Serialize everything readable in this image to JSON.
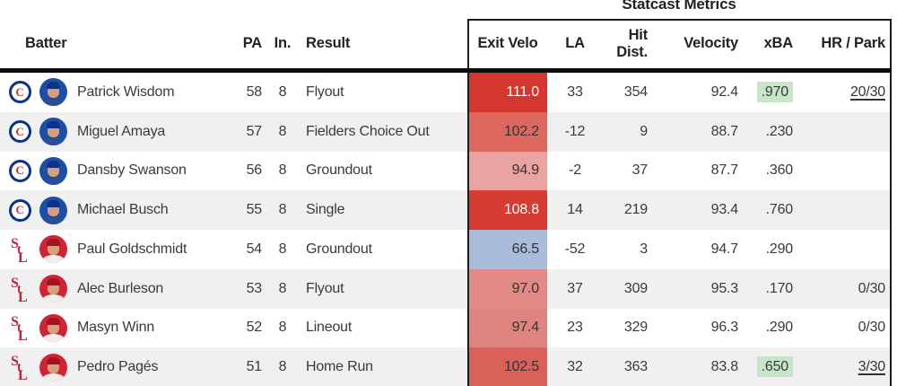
{
  "title": "Statcast Metrics",
  "header": {
    "batter": "Batter",
    "pa": "PA",
    "inning": "In.",
    "result": "Result",
    "exit_velo": "Exit Velo",
    "la": "LA",
    "hit_dist": "Hit Dist.",
    "velocity": "Velocity",
    "xba": "xBA",
    "hr_park": "HR / Park"
  },
  "colors": {
    "stripe": "#f0f0f1",
    "xba_highlight_green": "#c7e6c8",
    "exit_velo_blue": "#a9bcd9",
    "cubs_blue": "#0e3386",
    "cubs_red": "#cc3433",
    "cardinals_red": "#c41e3a",
    "divider_black": "#0d0d0d"
  },
  "rows": [
    {
      "team": "cubs",
      "batter": "Patrick Wisdom",
      "pa": "58",
      "inning": "8",
      "result": "Flyout",
      "exit_velo": "111.0",
      "ev_bg": "#d4372e",
      "ev_text": "#ffffff",
      "la": "33",
      "hit_dist": "354",
      "velocity": "92.4",
      "xba": ".970",
      "xba_highlight": true,
      "hr_park": "20/30",
      "hr_underline": true
    },
    {
      "team": "cubs",
      "batter": "Miguel Amaya",
      "pa": "57",
      "inning": "8",
      "result": "Fielders Choice Out",
      "exit_velo": "102.2",
      "ev_bg": "#dc675f",
      "ev_text": "#333333",
      "la": "-12",
      "hit_dist": "9",
      "velocity": "88.7",
      "xba": ".230",
      "xba_highlight": false,
      "hr_park": "",
      "hr_underline": false
    },
    {
      "team": "cubs",
      "batter": "Dansby Swanson",
      "pa": "56",
      "inning": "8",
      "result": "Groundout",
      "exit_velo": "94.9",
      "ev_bg": "#e9a4a2",
      "ev_text": "#333333",
      "la": "-2",
      "hit_dist": "37",
      "velocity": "87.7",
      "xba": ".360",
      "xba_highlight": false,
      "hr_park": "",
      "hr_underline": false
    },
    {
      "team": "cubs",
      "batter": "Michael Busch",
      "pa": "55",
      "inning": "8",
      "result": "Single",
      "exit_velo": "108.8",
      "ev_bg": "#d63c32",
      "ev_text": "#ffffff",
      "la": "14",
      "hit_dist": "219",
      "velocity": "93.4",
      "xba": ".760",
      "xba_highlight": false,
      "hr_park": "",
      "hr_underline": false
    },
    {
      "team": "cardinals",
      "batter": "Paul Goldschmidt",
      "pa": "54",
      "inning": "8",
      "result": "Groundout",
      "exit_velo": "66.5",
      "ev_bg": "#a9bcd9",
      "ev_text": "#333333",
      "la": "-52",
      "hit_dist": "3",
      "velocity": "94.7",
      "xba": ".290",
      "xba_highlight": false,
      "hr_park": "",
      "hr_underline": false
    },
    {
      "team": "cardinals",
      "batter": "Alec Burleson",
      "pa": "53",
      "inning": "8",
      "result": "Flyout",
      "exit_velo": "97.0",
      "ev_bg": "#e28a86",
      "ev_text": "#333333",
      "la": "37",
      "hit_dist": "309",
      "velocity": "95.3",
      "xba": ".170",
      "xba_highlight": false,
      "hr_park": "0/30",
      "hr_underline": false
    },
    {
      "team": "cardinals",
      "batter": "Masyn Winn",
      "pa": "52",
      "inning": "8",
      "result": "Lineout",
      "exit_velo": "97.4",
      "ev_bg": "#e08480",
      "ev_text": "#333333",
      "la": "23",
      "hit_dist": "329",
      "velocity": "96.3",
      "xba": ".290",
      "xba_highlight": false,
      "hr_park": "0/30",
      "hr_underline": false
    },
    {
      "team": "cardinals",
      "batter": "Pedro Pagés",
      "pa": "51",
      "inning": "8",
      "result": "Home Run",
      "exit_velo": "102.5",
      "ev_bg": "#da6159",
      "ev_text": "#333333",
      "la": "32",
      "hit_dist": "363",
      "velocity": "83.8",
      "xba": ".650",
      "xba_highlight": true,
      "hr_park": "3/30",
      "hr_underline": true
    }
  ]
}
